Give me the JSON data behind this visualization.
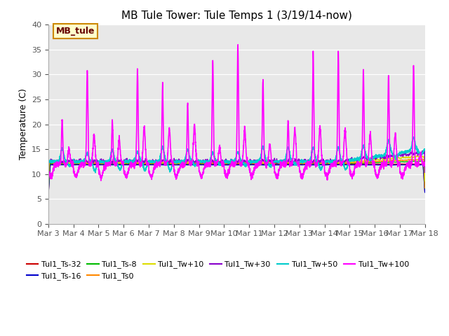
{
  "title": "MB Tule Tower: Tule Temps 1 (3/19/14-now)",
  "ylabel": "Temperature (C)",
  "xlim": [
    0,
    15
  ],
  "ylim": [
    0,
    40
  ],
  "yticks": [
    0,
    5,
    10,
    15,
    20,
    25,
    30,
    35,
    40
  ],
  "xtick_labels": [
    "Mar 3",
    "Mar 4",
    "Mar 5",
    "Mar 6",
    "Mar 7",
    "Mar 8",
    "Mar 9",
    "Mar 10",
    "Mar 11",
    "Mar 12",
    "Mar 13",
    "Mar 14",
    "Mar 15",
    "Mar 16",
    "Mar 17",
    "Mar 18"
  ],
  "fig_bg": "#ffffff",
  "plot_bg": "#e8e8e8",
  "grid_color": "#ffffff",
  "series": [
    {
      "label": "Tul1_Ts-32",
      "color": "#cc0000",
      "lw": 1.0
    },
    {
      "label": "Tul1_Ts-16",
      "color": "#0000cc",
      "lw": 1.0
    },
    {
      "label": "Tul1_Ts-8",
      "color": "#00bb00",
      "lw": 1.0
    },
    {
      "label": "Tul1_Ts0",
      "color": "#ff8800",
      "lw": 1.0
    },
    {
      "label": "Tul1_Tw+10",
      "color": "#dddd00",
      "lw": 1.0
    },
    {
      "label": "Tul1_Tw+30",
      "color": "#8800cc",
      "lw": 1.0
    },
    {
      "label": "Tul1_Tw+50",
      "color": "#00cccc",
      "lw": 1.2
    },
    {
      "label": "Tul1_Tw+100",
      "color": "#ff00ff",
      "lw": 1.2
    }
  ],
  "inset_label": "MB_tule",
  "inset_text_color": "#660000",
  "inset_edge_color": "#cc8800",
  "inset_bg": "#ffffcc",
  "legend_fontsize": 8,
  "title_fontsize": 11,
  "tick_fontsize": 8,
  "ylabel_fontsize": 9
}
